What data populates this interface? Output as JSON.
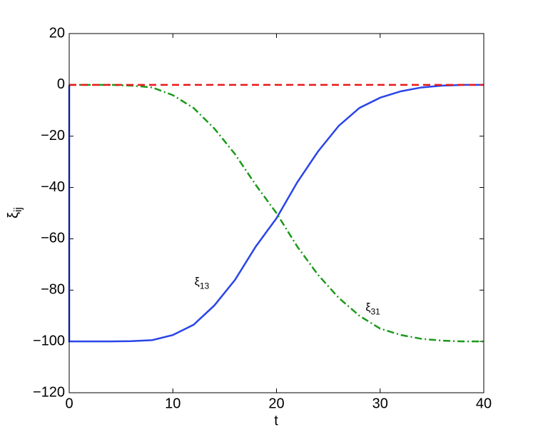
{
  "chart_data": {
    "type": "line",
    "xlabel": "t",
    "ylabel": "ξ",
    "ylabel_sub": "ij",
    "xlim": [
      0,
      40
    ],
    "ylim": [
      -120,
      20
    ],
    "xticks": [
      0,
      10,
      20,
      30,
      40
    ],
    "yticks": [
      {
        "value": -120,
        "label": "−120"
      },
      {
        "value": -100,
        "label": "−100"
      },
      {
        "value": -80,
        "label": "−80"
      },
      {
        "value": -60,
        "label": "−60"
      },
      {
        "value": -40,
        "label": "−40"
      },
      {
        "value": -20,
        "label": "−20"
      },
      0,
      20
    ],
    "series": [
      {
        "color": "#2a45e8",
        "dash": "solid",
        "label": "ξ",
        "label_sub": "13",
        "label_at": [
          12.8,
          -77
        ],
        "x": [
          0,
          0,
          2,
          4,
          6,
          8,
          10,
          12,
          14,
          16,
          18,
          20,
          22,
          24,
          26,
          28,
          30,
          32,
          34,
          36,
          38,
          40
        ],
        "values": [
          0,
          -100,
          -100,
          -100,
          -99.9,
          -99.5,
          -97.5,
          -93.5,
          -86,
          -76,
          -63,
          -52,
          -38,
          -26,
          -16,
          -9,
          -5,
          -2.5,
          -1,
          -0.3,
          0,
          0
        ]
      },
      {
        "color": "#1a9a1a",
        "dash": "dashdot",
        "label": "ξ",
        "label_sub": "31",
        "label_at": [
          29.3,
          -87
        ],
        "x": [
          0,
          2,
          4,
          6,
          8,
          10,
          12,
          14,
          16,
          18,
          20,
          22,
          24,
          26,
          28,
          30,
          32,
          34,
          36,
          38,
          40
        ],
        "values": [
          0,
          0,
          0,
          -0.3,
          -1,
          -4,
          -9,
          -17,
          -27,
          -39,
          -50,
          -63,
          -74,
          -83,
          -90,
          -95,
          -97.5,
          -99,
          -99.7,
          -100,
          -100
        ]
      },
      {
        "color": "#e81818",
        "dash": "dashed",
        "x": [
          0,
          40
        ],
        "values": [
          0,
          0
        ]
      }
    ]
  }
}
